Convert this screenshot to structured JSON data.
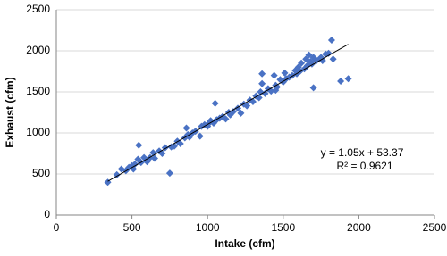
{
  "chart_data": {
    "type": "scatter",
    "x_label": "Intake (cfm)",
    "y_label": "Exhaust (cfm)",
    "color": "#4a72c4",
    "marker": "diamond",
    "x": [
      340,
      400,
      430,
      460,
      480,
      500,
      510,
      520,
      540,
      545,
      560,
      580,
      600,
      620,
      640,
      650,
      680,
      700,
      720,
      750,
      760,
      780,
      800,
      820,
      850,
      860,
      870,
      880,
      900,
      920,
      950,
      960,
      980,
      1000,
      1010,
      1020,
      1040,
      1050,
      1060,
      1080,
      1100,
      1120,
      1140,
      1150,
      1170,
      1200,
      1220,
      1240,
      1260,
      1280,
      1300,
      1320,
      1340,
      1350,
      1360,
      1380,
      1400,
      1420,
      1440,
      1450,
      1460,
      1480,
      1500,
      1510,
      1520,
      1540,
      1560,
      1580,
      1590,
      1600,
      1610,
      1620,
      1640,
      1650,
      1660,
      1670,
      1680,
      1690,
      1700,
      1710,
      1720,
      1740,
      1750,
      1760,
      1780,
      1800,
      1820,
      1830,
      1880,
      1930,
      1700,
      1360,
      1450
    ],
    "values": [
      400,
      490,
      560,
      540,
      580,
      600,
      560,
      620,
      680,
      850,
      640,
      700,
      650,
      700,
      760,
      690,
      780,
      750,
      820,
      510,
      830,
      840,
      900,
      870,
      940,
      1060,
      980,
      950,
      1000,
      1020,
      960,
      1080,
      1100,
      1080,
      1120,
      1150,
      1120,
      1360,
      1160,
      1180,
      1200,
      1170,
      1250,
      1220,
      1260,
      1300,
      1240,
      1350,
      1330,
      1400,
      1380,
      1450,
      1430,
      1500,
      1720,
      1480,
      1540,
      1510,
      1700,
      1580,
      1560,
      1650,
      1620,
      1730,
      1660,
      1680,
      1700,
      1760,
      1720,
      1800,
      1750,
      1850,
      1780,
      1900,
      1820,
      1950,
      1870,
      1840,
      1550,
      1900,
      1880,
      1900,
      1920,
      1880,
      1960,
      1970,
      2130,
      1900,
      1630,
      1660,
      1920,
      1600,
      1520
    ],
    "trendline": {
      "slope": 1.05,
      "intercept": 53.37,
      "label": "y = 1.05x + 53.37",
      "r_squared": 0.9621,
      "r_squared_label": "R² = 0.9621"
    },
    "xlim": [
      0,
      2500
    ],
    "xticks": [
      0,
      500,
      1000,
      1500,
      2000,
      2500
    ],
    "ylim": [
      0,
      2500
    ],
    "yticks": [
      0,
      500,
      1000,
      1500,
      2000,
      2500
    ],
    "grid": true
  }
}
